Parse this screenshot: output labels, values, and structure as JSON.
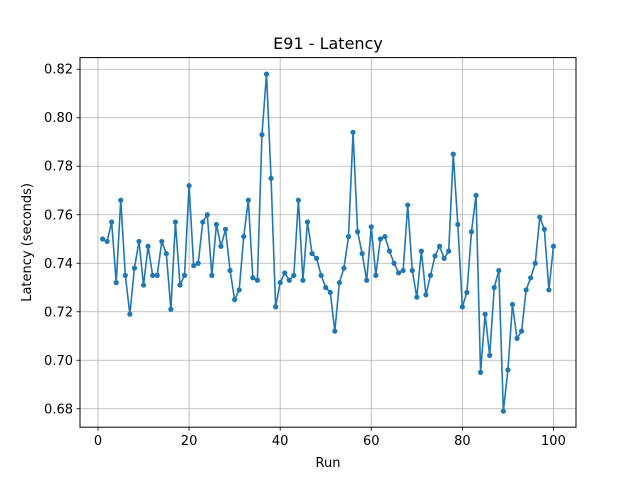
{
  "chart_data": {
    "type": "line",
    "title": "E91 - Latency",
    "xlabel": "Run",
    "ylabel": "Latency (seconds)",
    "xlim": [
      -3.95,
      104.95
    ],
    "ylim": [
      0.6724,
      0.8248
    ],
    "xticks": [
      0,
      20,
      40,
      60,
      80,
      100
    ],
    "yticks": [
      0.68,
      0.7,
      0.72,
      0.74,
      0.76,
      0.78,
      0.8,
      0.82
    ],
    "ytick_labels": [
      "0.68",
      "0.70",
      "0.72",
      "0.74",
      "0.76",
      "0.78",
      "0.80",
      "0.82"
    ],
    "grid": true,
    "color": "#1f77b4",
    "series": [
      {
        "x": [
          1,
          2,
          3,
          4,
          5,
          6,
          7,
          8,
          9,
          10,
          11,
          12,
          13,
          14,
          15,
          16,
          17,
          18,
          19,
          20,
          21,
          22,
          23,
          24,
          25,
          26,
          27,
          28,
          29,
          30,
          31,
          32,
          33,
          34,
          35,
          36,
          37,
          38,
          39,
          40,
          41,
          42,
          43,
          44,
          45,
          46,
          47,
          48,
          49,
          50,
          51,
          52,
          53,
          54,
          55,
          56,
          57,
          58,
          59,
          60,
          61,
          62,
          63,
          64,
          65,
          66,
          67,
          68,
          69,
          70,
          71,
          72,
          73,
          74,
          75,
          76,
          77,
          78,
          79,
          80,
          81,
          82,
          83,
          84,
          85,
          86,
          87,
          88,
          89,
          90,
          91,
          92,
          93,
          94,
          95,
          96,
          97,
          98,
          99,
          100
        ],
        "values": [
          0.75,
          0.749,
          0.757,
          0.732,
          0.766,
          0.735,
          0.719,
          0.738,
          0.749,
          0.731,
          0.747,
          0.735,
          0.735,
          0.749,
          0.744,
          0.721,
          0.757,
          0.731,
          0.735,
          0.772,
          0.739,
          0.74,
          0.757,
          0.76,
          0.735,
          0.756,
          0.747,
          0.754,
          0.737,
          0.725,
          0.729,
          0.751,
          0.766,
          0.734,
          0.733,
          0.793,
          0.818,
          0.775,
          0.722,
          0.732,
          0.736,
          0.733,
          0.735,
          0.766,
          0.733,
          0.757,
          0.744,
          0.742,
          0.735,
          0.73,
          0.728,
          0.712,
          0.732,
          0.738,
          0.751,
          0.794,
          0.753,
          0.744,
          0.733,
          0.755,
          0.735,
          0.75,
          0.751,
          0.745,
          0.74,
          0.736,
          0.737,
          0.764,
          0.737,
          0.726,
          0.745,
          0.727,
          0.735,
          0.743,
          0.747,
          0.742,
          0.745,
          0.785,
          0.756,
          0.722,
          0.728,
          0.753,
          0.768,
          0.695,
          0.719,
          0.702,
          0.73,
          0.737,
          0.679,
          0.696,
          0.723,
          0.709,
          0.712,
          0.729,
          0.734,
          0.74,
          0.759,
          0.754,
          0.729,
          0.747
        ]
      }
    ]
  }
}
